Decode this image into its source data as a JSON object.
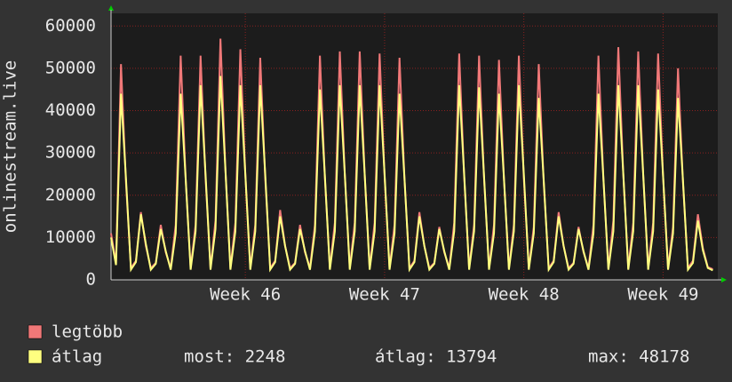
{
  "chart_data": {
    "type": "line",
    "ylabel": "onlinestream.live",
    "xlim": [
      0,
      122
    ],
    "xticks": [
      {
        "value": 27,
        "label": "Week 46"
      },
      {
        "value": 55,
        "label": "Week 47"
      },
      {
        "value": 83,
        "label": "Week 48"
      },
      {
        "value": 111,
        "label": "Week 49"
      }
    ],
    "ylim": [
      0,
      63000
    ],
    "yticks": [
      0,
      10000,
      20000,
      30000,
      40000,
      50000,
      60000
    ],
    "grid": true,
    "series": [
      {
        "name": "legtöbb",
        "color": "#f07878",
        "values": [
          11000,
          4000,
          51000,
          23000,
          2800,
          4500,
          16000,
          8000,
          2800,
          4000,
          13000,
          6500,
          2800,
          13000,
          53000,
          24000,
          2800,
          13000,
          53000,
          24000,
          2800,
          14000,
          57000,
          26000,
          2800,
          13500,
          54500,
          25000,
          2800,
          13000,
          52500,
          24000,
          2800,
          4500,
          16500,
          8000,
          2800,
          4000,
          13000,
          6500,
          2800,
          13000,
          53000,
          24000,
          2800,
          13500,
          54000,
          25000,
          2800,
          13500,
          54000,
          25000,
          2800,
          13500,
          53500,
          24500,
          2800,
          13000,
          52500,
          24000,
          2800,
          4500,
          16000,
          8000,
          2800,
          4000,
          12500,
          6500,
          2800,
          13500,
          53500,
          24500,
          2800,
          13000,
          53000,
          24000,
          2800,
          13000,
          52000,
          24000,
          2800,
          13000,
          53000,
          24000,
          2800,
          12500,
          51000,
          23000,
          2800,
          4500,
          16000,
          8000,
          2800,
          4000,
          12500,
          6500,
          2800,
          13000,
          53000,
          24000,
          2800,
          14000,
          55000,
          25000,
          2800,
          13500,
          54000,
          25000,
          2800,
          13500,
          53500,
          24500,
          2800,
          12500,
          50000,
          23000,
          2800,
          4500,
          15500,
          7500,
          3000,
          2500
        ]
      },
      {
        "name": "átlag",
        "color": "#ffff80",
        "values": [
          10000,
          3500,
          44000,
          24000,
          2400,
          4200,
          15500,
          8500,
          2400,
          3800,
          12000,
          6800,
          2400,
          11000,
          44000,
          24000,
          2400,
          11500,
          46000,
          25000,
          2400,
          12000,
          48178,
          26000,
          2400,
          11500,
          46000,
          25000,
          2400,
          11500,
          46000,
          25000,
          2400,
          4200,
          15000,
          8000,
          2400,
          3800,
          12000,
          6800,
          2400,
          11500,
          45000,
          24500,
          2400,
          11500,
          46000,
          25000,
          2400,
          11500,
          46000,
          25000,
          2400,
          11500,
          46000,
          25000,
          2400,
          11000,
          44000,
          24000,
          2400,
          4200,
          15000,
          8000,
          2400,
          3800,
          12000,
          6800,
          2400,
          11500,
          46000,
          25000,
          2400,
          11500,
          45500,
          24500,
          2400,
          11000,
          44000,
          24000,
          2400,
          11500,
          46000,
          25000,
          2400,
          11000,
          43000,
          23500,
          2400,
          4200,
          15000,
          8000,
          2400,
          3800,
          12000,
          6800,
          2400,
          11000,
          44000,
          24000,
          2400,
          11500,
          46000,
          25000,
          2400,
          11500,
          46000,
          25000,
          2400,
          11500,
          45000,
          24500,
          2400,
          11000,
          43000,
          23500,
          2400,
          4000,
          14000,
          7000,
          2800,
          2248
        ]
      }
    ],
    "stats": [
      "most: 2248",
      "átlag: 13794",
      "max: 48178"
    ]
  }
}
